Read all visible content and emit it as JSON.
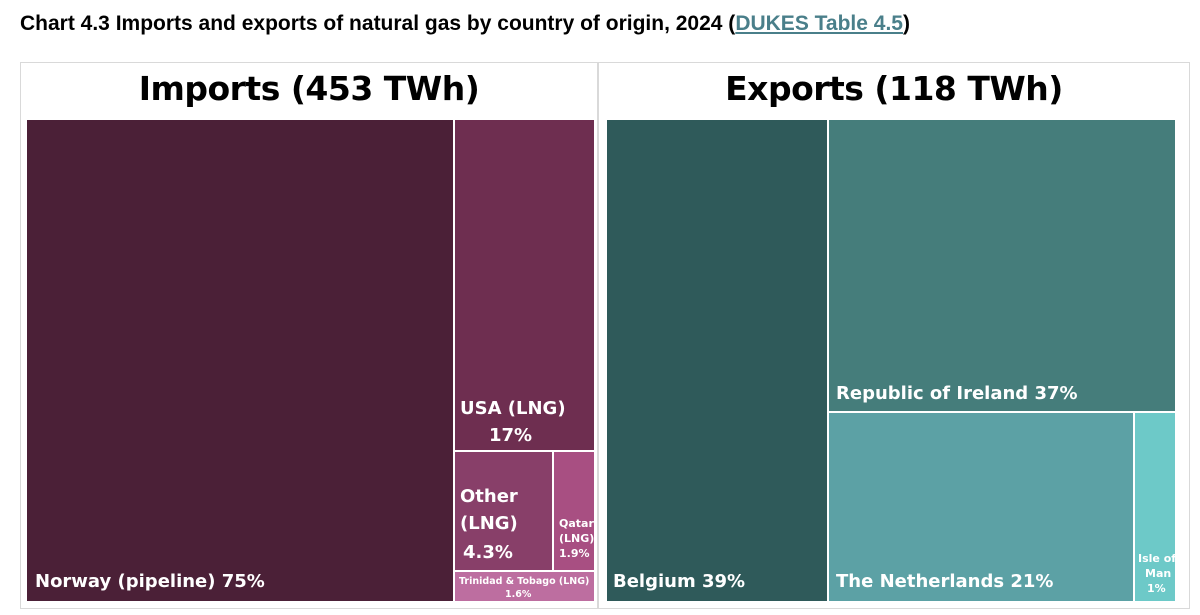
{
  "title": {
    "prefix": "Chart 4.3 Imports and exports of natural gas by country of origin, 2024 (",
    "link": "DUKES Table 4.5",
    "suffix": ")"
  },
  "chart_data": [
    {
      "type": "treemap",
      "title": "Imports (453 TWh)",
      "total_twh": 453,
      "series": [
        {
          "name": "Norway (pipeline)",
          "value": 75,
          "label": "Norway (pipeline) 75%",
          "color": "#4b2037"
        },
        {
          "name": "USA (LNG)",
          "value": 17,
          "label_line1": "USA (LNG)",
          "label_line2": "17%",
          "color": "#6e2e50"
        },
        {
          "name": "Other (LNG)",
          "value": 4.3,
          "label_line1": "Other",
          "label_line2": "(LNG)",
          "label_line3": "4.3%",
          "color": "#883f69"
        },
        {
          "name": "Qatar (LNG)",
          "value": 1.9,
          "label_line1": "Qatar",
          "label_line2": "(LNG)",
          "label_line3": "1.9%",
          "color": "#a84f82"
        },
        {
          "name": "Trinidad & Tobago (LNG)",
          "value": 1.6,
          "label_line1": "Trinidad & Tobago (LNG)",
          "label_line2": "1.6%",
          "color": "#bd6ea0"
        }
      ]
    },
    {
      "type": "treemap",
      "title": "Exports (118 TWh)",
      "total_twh": 118,
      "series": [
        {
          "name": "Belgium",
          "value": 39,
          "label": "Belgium 39%",
          "color": "#2f5a5a"
        },
        {
          "name": "Republic of Ireland",
          "value": 37,
          "label": "Republic of Ireland 37%",
          "color": "#457d7b"
        },
        {
          "name": "The Netherlands",
          "value": 21,
          "label": "The Netherlands 21%",
          "color": "#5ca1a5"
        },
        {
          "name": "Isle of Man",
          "value": 1,
          "label_line1": "Isle of",
          "label_line2": "Man",
          "label_line3": "1%",
          "color": "#6dc9c8"
        }
      ]
    }
  ]
}
